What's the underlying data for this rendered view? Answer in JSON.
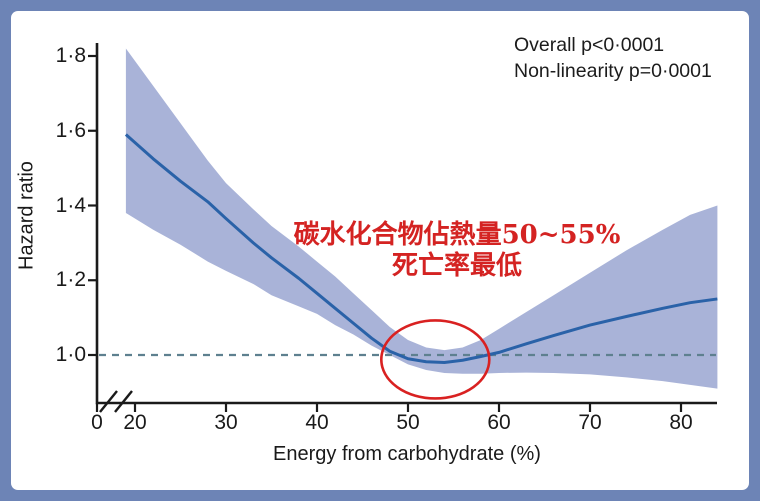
{
  "frame": {
    "border_color": "#6d84b6",
    "background": "#ffffff"
  },
  "annotations": {
    "overall_p": "Overall p<0·0001",
    "nonlinearity_p": "Non-linearity p=0·0001",
    "highlight_line1": "碳水化合物佔熱量50~55%",
    "highlight_line2": "死亡率最低",
    "highlight_color": "#d42322"
  },
  "chart_data": {
    "type": "line",
    "title": "",
    "xlabel": "Energy from carbohydrate (%)",
    "ylabel": "Hazard ratio",
    "x_ticks": [
      0,
      20,
      30,
      40,
      50,
      60,
      70,
      80
    ],
    "x_tick_labels": [
      "0",
      "20",
      "30",
      "40",
      "50",
      "60",
      "70",
      "80"
    ],
    "y_ticks": [
      1.0,
      1.2,
      1.4,
      1.6,
      1.8
    ],
    "y_tick_labels": [
      "1·0",
      "1·2",
      "1·4",
      "1·6",
      "1·8"
    ],
    "x_axis_break_after_zero": true,
    "xlim": [
      0,
      84
    ],
    "ylim": [
      0.88,
      1.86
    ],
    "grid": false,
    "legend": "none",
    "reference_line_y": 1.0,
    "x": [
      19,
      22,
      25,
      28,
      30,
      33,
      35,
      38,
      40,
      42,
      44,
      46,
      48,
      50,
      52,
      54,
      56,
      58,
      60,
      63,
      66,
      70,
      74,
      78,
      81,
      84
    ],
    "series": [
      {
        "name": "hazard-ratio-spline",
        "color": "#2a62a8",
        "values": [
          1.59,
          1.525,
          1.465,
          1.41,
          1.365,
          1.3,
          1.26,
          1.205,
          1.165,
          1.125,
          1.085,
          1.045,
          1.01,
          0.99,
          0.982,
          0.98,
          0.986,
          0.996,
          1.007,
          1.03,
          1.052,
          1.08,
          1.103,
          1.125,
          1.14,
          1.15
        ]
      }
    ],
    "confidence_band": {
      "color": "#a9b3d8",
      "upper": [
        1.82,
        1.72,
        1.62,
        1.52,
        1.46,
        1.39,
        1.345,
        1.29,
        1.25,
        1.21,
        1.165,
        1.12,
        1.075,
        1.04,
        1.02,
        1.013,
        1.02,
        1.04,
        1.07,
        1.115,
        1.16,
        1.22,
        1.28,
        1.335,
        1.375,
        1.4
      ],
      "lower": [
        1.38,
        1.335,
        1.295,
        1.25,
        1.225,
        1.19,
        1.16,
        1.13,
        1.11,
        1.08,
        1.055,
        1.025,
        1.0,
        0.975,
        0.96,
        0.952,
        0.95,
        0.95,
        0.952,
        0.953,
        0.952,
        0.948,
        0.94,
        0.93,
        0.92,
        0.91
      ]
    },
    "ellipse_annotation": {
      "x_center": 53,
      "y_center": 0.988,
      "color": "#d92121",
      "meaning": "lowest mortality region circled"
    },
    "reference_line_color": "#5e808f",
    "axis_color": "#1a1a1a"
  }
}
